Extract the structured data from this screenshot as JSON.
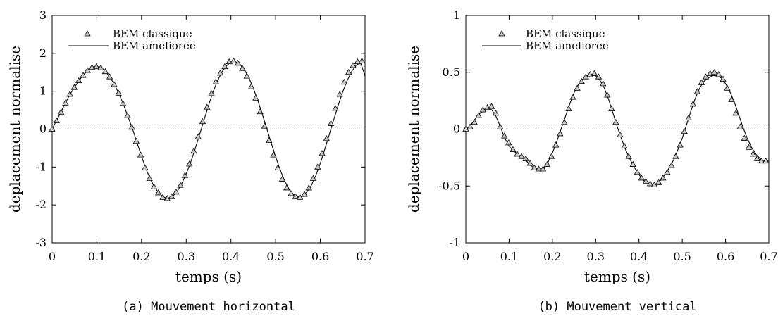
{
  "chart_data": [
    {
      "type": "line",
      "caption": "(a) Mouvement horizontal",
      "xlabel": "temps (s)",
      "ylabel": "deplacement normalise",
      "xlim": [
        0,
        0.7
      ],
      "ylim": [
        -3,
        3
      ],
      "xticks": [
        0,
        0.1,
        0.2,
        0.3,
        0.4,
        0.5,
        0.6,
        0.7
      ],
      "xtick_labels": [
        "0",
        "0.1",
        "0.2",
        "0.3",
        "0.4",
        "0.5",
        "0.6",
        "0.7"
      ],
      "yticks": [
        -3,
        -2,
        -1,
        0,
        1,
        2,
        3
      ],
      "ytick_labels": [
        "-3",
        "-2",
        "-1",
        "0",
        "1",
        "2",
        "3"
      ],
      "zero_line": true,
      "grid": false,
      "legend_position": "top-left",
      "series": [
        {
          "name": "BEM classique",
          "style": "triangle-markers",
          "x": [
            0,
            0.0099,
            0.0198,
            0.0297,
            0.0396,
            0.0495,
            0.0594,
            0.0693,
            0.0792,
            0.0891,
            0.099,
            0.1089,
            0.1188,
            0.1287,
            0.1386,
            0.1485,
            0.1584,
            0.1683,
            0.1782,
            0.1881,
            0.198,
            0.2079,
            0.2178,
            0.2277,
            0.2376,
            0.2475,
            0.2574,
            0.2673,
            0.2772,
            0.2871,
            0.297,
            0.3069,
            0.3168,
            0.3267,
            0.3366,
            0.3465,
            0.3564,
            0.3663,
            0.3762,
            0.3861,
            0.396,
            0.4059,
            0.4158,
            0.4257,
            0.4356,
            0.4455,
            0.4554,
            0.4653,
            0.4752,
            0.4851,
            0.495,
            0.5049,
            0.5148,
            0.5247,
            0.5346,
            0.5445,
            0.5544,
            0.5643,
            0.5742,
            0.5841,
            0.594,
            0.6039,
            0.6138,
            0.6237,
            0.6336,
            0.6435,
            0.6534,
            0.6633,
            0.6732,
            0.6831,
            0.693
          ],
          "y": [
            0,
            0.22,
            0.45,
            0.69,
            0.92,
            1.1,
            1.28,
            1.42,
            1.55,
            1.63,
            1.65,
            1.62,
            1.52,
            1.38,
            1.18,
            0.95,
            0.68,
            0.36,
            0.05,
            -0.32,
            -0.68,
            -1.02,
            -1.3,
            -1.52,
            -1.68,
            -1.8,
            -1.83,
            -1.78,
            -1.66,
            -1.48,
            -1.22,
            -0.92,
            -0.58,
            -0.2,
            0.2,
            0.58,
            0.94,
            1.25,
            1.48,
            1.65,
            1.78,
            1.8,
            1.74,
            1.6,
            1.4,
            1.12,
            0.82,
            0.46,
            0.08,
            -0.3,
            -0.68,
            -1.02,
            -1.32,
            -1.55,
            -1.7,
            -1.78,
            -1.8,
            -1.72,
            -1.55,
            -1.3,
            -1.0,
            -0.64,
            -0.25,
            0.15,
            0.55,
            0.92,
            1.24,
            1.5,
            1.68,
            1.78,
            1.8
          ]
        },
        {
          "name": "BEM amelioree",
          "style": "solid-line",
          "x": [
            0,
            0.01,
            0.02,
            0.03,
            0.04,
            0.05,
            0.06,
            0.07,
            0.08,
            0.09,
            0.1,
            0.11,
            0.12,
            0.13,
            0.14,
            0.15,
            0.16,
            0.17,
            0.18,
            0.19,
            0.2,
            0.21,
            0.22,
            0.23,
            0.24,
            0.25,
            0.26,
            0.27,
            0.28,
            0.29,
            0.3,
            0.31,
            0.32,
            0.33,
            0.34,
            0.35,
            0.36,
            0.37,
            0.38,
            0.39,
            0.4,
            0.41,
            0.42,
            0.43,
            0.44,
            0.45,
            0.46,
            0.47,
            0.48,
            0.49,
            0.5,
            0.51,
            0.52,
            0.53,
            0.54,
            0.55,
            0.56,
            0.57,
            0.58,
            0.59,
            0.6,
            0.61,
            0.62,
            0.63,
            0.64,
            0.65,
            0.66,
            0.67,
            0.68,
            0.69,
            0.7
          ],
          "y": [
            0,
            0.23,
            0.46,
            0.7,
            0.92,
            1.1,
            1.28,
            1.43,
            1.56,
            1.64,
            1.66,
            1.62,
            1.51,
            1.36,
            1.16,
            0.92,
            0.64,
            0.32,
            0.0,
            -0.36,
            -0.72,
            -1.05,
            -1.33,
            -1.55,
            -1.7,
            -1.8,
            -1.82,
            -1.77,
            -1.64,
            -1.44,
            -1.18,
            -0.87,
            -0.52,
            -0.14,
            0.25,
            0.63,
            0.98,
            1.28,
            1.51,
            1.67,
            1.77,
            1.78,
            1.71,
            1.57,
            1.36,
            1.08,
            0.76,
            0.4,
            0.02,
            -0.36,
            -0.73,
            -1.07,
            -1.36,
            -1.58,
            -1.72,
            -1.78,
            -1.76,
            -1.66,
            -1.48,
            -1.22,
            -0.9,
            -0.53,
            -0.14,
            0.25,
            0.63,
            0.98,
            1.28,
            1.52,
            1.68,
            1.76,
            1.4
          ]
        }
      ]
    },
    {
      "type": "line",
      "caption": "(b) Mouvement vertical",
      "xlabel": "temps (s)",
      "ylabel": "deplacement normalise",
      "xlim": [
        0,
        0.7
      ],
      "ylim": [
        -1,
        1
      ],
      "xticks": [
        0,
        0.1,
        0.2,
        0.3,
        0.4,
        0.5,
        0.6,
        0.7
      ],
      "xtick_labels": [
        "0",
        "0.1",
        "0.2",
        "0.3",
        "0.4",
        "0.5",
        "0.6",
        "0.7"
      ],
      "yticks": [
        -1,
        -0.5,
        0,
        0.5,
        1
      ],
      "ytick_labels": [
        "-1",
        "-0.5",
        "0",
        "0.5",
        "1"
      ],
      "zero_line": true,
      "grid": false,
      "legend_position": "top-left",
      "series": [
        {
          "name": "BEM classique",
          "style": "triangle-markers",
          "x": [
            0,
            0.0099,
            0.0198,
            0.0297,
            0.0396,
            0.0495,
            0.0594,
            0.0693,
            0.0792,
            0.0891,
            0.099,
            0.1089,
            0.1188,
            0.1287,
            0.1386,
            0.1485,
            0.1584,
            0.1683,
            0.1782,
            0.1881,
            0.198,
            0.2079,
            0.2178,
            0.2277,
            0.2376,
            0.2475,
            0.2574,
            0.2673,
            0.2772,
            0.2871,
            0.297,
            0.3069,
            0.3168,
            0.3267,
            0.3366,
            0.3465,
            0.3564,
            0.3663,
            0.3762,
            0.3861,
            0.396,
            0.4059,
            0.4158,
            0.4257,
            0.4356,
            0.4455,
            0.4554,
            0.4653,
            0.4752,
            0.4851,
            0.495,
            0.5049,
            0.5148,
            0.5247,
            0.5346,
            0.5445,
            0.5544,
            0.5643,
            0.5742,
            0.5841,
            0.594,
            0.6039,
            0.6138,
            0.6237,
            0.6336,
            0.6435,
            0.6534,
            0.6633,
            0.6732,
            0.6831,
            0.693
          ],
          "y": [
            0.0,
            0.02,
            0.06,
            0.12,
            0.17,
            0.19,
            0.2,
            0.14,
            0.02,
            -0.06,
            -0.12,
            -0.18,
            -0.22,
            -0.24,
            -0.26,
            -0.3,
            -0.34,
            -0.35,
            -0.35,
            -0.31,
            -0.24,
            -0.14,
            -0.04,
            0.06,
            0.18,
            0.28,
            0.36,
            0.42,
            0.46,
            0.48,
            0.49,
            0.46,
            0.4,
            0.3,
            0.18,
            0.06,
            -0.05,
            -0.15,
            -0.24,
            -0.31,
            -0.38,
            -0.43,
            -0.46,
            -0.48,
            -0.49,
            -0.47,
            -0.43,
            -0.38,
            -0.32,
            -0.24,
            -0.14,
            -0.02,
            0.1,
            0.22,
            0.33,
            0.41,
            0.46,
            0.49,
            0.5,
            0.48,
            0.44,
            0.36,
            0.26,
            0.14,
            0.02,
            -0.08,
            -0.16,
            -0.22,
            -0.26,
            -0.28,
            -0.28
          ]
        },
        {
          "name": "BEM amelioree",
          "style": "solid-line",
          "x": [
            0,
            0.01,
            0.02,
            0.03,
            0.04,
            0.05,
            0.06,
            0.07,
            0.08,
            0.09,
            0.1,
            0.11,
            0.12,
            0.13,
            0.14,
            0.15,
            0.16,
            0.17,
            0.18,
            0.19,
            0.2,
            0.21,
            0.22,
            0.23,
            0.24,
            0.25,
            0.26,
            0.27,
            0.28,
            0.29,
            0.3,
            0.31,
            0.32,
            0.33,
            0.34,
            0.35,
            0.36,
            0.37,
            0.38,
            0.39,
            0.4,
            0.41,
            0.42,
            0.43,
            0.44,
            0.45,
            0.46,
            0.47,
            0.48,
            0.49,
            0.5,
            0.51,
            0.52,
            0.53,
            0.54,
            0.55,
            0.56,
            0.57,
            0.58,
            0.59,
            0.6,
            0.61,
            0.62,
            0.63,
            0.64,
            0.65,
            0.66,
            0.67,
            0.68,
            0.69,
            0.7
          ],
          "y": [
            0.0,
            0.03,
            0.08,
            0.13,
            0.16,
            0.18,
            0.17,
            0.11,
            0.02,
            -0.08,
            -0.15,
            -0.19,
            -0.22,
            -0.25,
            -0.28,
            -0.32,
            -0.35,
            -0.36,
            -0.34,
            -0.29,
            -0.21,
            -0.11,
            0.0,
            0.11,
            0.22,
            0.32,
            0.39,
            0.44,
            0.47,
            0.48,
            0.47,
            0.43,
            0.36,
            0.26,
            0.14,
            0.02,
            -0.09,
            -0.19,
            -0.27,
            -0.34,
            -0.4,
            -0.45,
            -0.48,
            -0.49,
            -0.48,
            -0.45,
            -0.4,
            -0.34,
            -0.27,
            -0.18,
            -0.08,
            0.04,
            0.16,
            0.27,
            0.36,
            0.42,
            0.45,
            0.47,
            0.47,
            0.45,
            0.4,
            0.33,
            0.24,
            0.13,
            0.02,
            -0.08,
            -0.16,
            -0.22,
            -0.26,
            -0.28,
            -0.28
          ]
        }
      ]
    }
  ]
}
